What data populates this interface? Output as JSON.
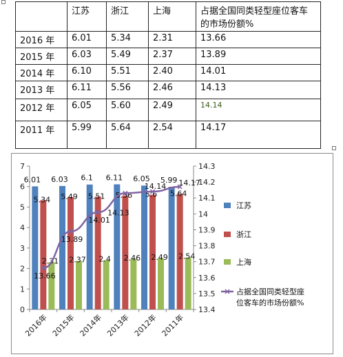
{
  "table": {
    "header": [
      "",
      "江苏",
      "浙江",
      "上海",
      "占据全国同类轻型座位客车的市场份额%"
    ],
    "rows": [
      {
        "year": "2016 年",
        "js": "6.01",
        "zj": "5.34",
        "sh": "2.31",
        "share": "13.66"
      },
      {
        "year": "2015 年",
        "js": "6.03",
        "zj": "5.49",
        "sh": "2.37",
        "share": "13.89"
      },
      {
        "year": "2014 年",
        "js": "6.10",
        "zj": "5.51",
        "sh": "2.40",
        "share": "14.01"
      },
      {
        "year": "2013 年",
        "js": "6.11",
        "zj": "5.56",
        "sh": "2.46",
        "share": "14.13"
      },
      {
        "year": "2012 年",
        "js": "6.05",
        "zj": "5.60",
        "sh": "2.49",
        "share": "14.14"
      },
      {
        "year": "2011 年",
        "js": "5.99",
        "zj": "5.64",
        "sh": "2.54",
        "share": "14.17"
      }
    ]
  },
  "chart_data": {
    "type": "bar",
    "categories": [
      "2016年",
      "2015年",
      "2014年",
      "2013年",
      "2012年",
      "2011年"
    ],
    "series": [
      {
        "name": "江苏",
        "type": "bar",
        "axis": "left",
        "color": "#4F81BD",
        "values": [
          6.01,
          6.03,
          6.1,
          6.11,
          6.05,
          5.99
        ],
        "labels": [
          "6.01",
          "6.03",
          "6.1",
          "6.11",
          "6.05",
          "5.99"
        ]
      },
      {
        "name": "浙江",
        "type": "bar",
        "axis": "left",
        "color": "#C0504D",
        "values": [
          5.34,
          5.49,
          5.51,
          5.56,
          5.6,
          5.64
        ],
        "labels": [
          "5.34",
          "5.49",
          "5.51",
          "5.56",
          "5.6",
          "5.64"
        ]
      },
      {
        "name": "上海",
        "type": "bar",
        "axis": "left",
        "color": "#9BBB59",
        "values": [
          2.31,
          2.37,
          2.4,
          2.46,
          2.49,
          2.54
        ],
        "labels": [
          "2.31",
          "2.37",
          "2.4",
          "2.46",
          "2.49",
          "2.54"
        ]
      },
      {
        "name": "占据全国同类轻型座位客车的市场份额%",
        "legend_lines": [
          "占据全国同类轻型座",
          "位客车的市场份额%"
        ],
        "type": "line",
        "axis": "right",
        "color": "#8064A2",
        "values": [
          13.66,
          13.89,
          14.01,
          14.13,
          14.14,
          14.17
        ],
        "labels": [
          "13.66",
          "13.89",
          "14.01",
          "14.13",
          "14.14",
          "14.17"
        ]
      }
    ],
    "y_left": {
      "min": 0,
      "max": 7,
      "ticks": [
        "0",
        "1",
        "2",
        "3",
        "4",
        "5",
        "6",
        "7"
      ]
    },
    "y_right": {
      "min": 13.4,
      "max": 14.3,
      "ticks": [
        "13.4",
        "13.5",
        "13.6",
        "13.7",
        "13.8",
        "13.9",
        "14",
        "14.1",
        "14.2",
        "14.3"
      ]
    },
    "legend_position": "right",
    "grid": false
  }
}
